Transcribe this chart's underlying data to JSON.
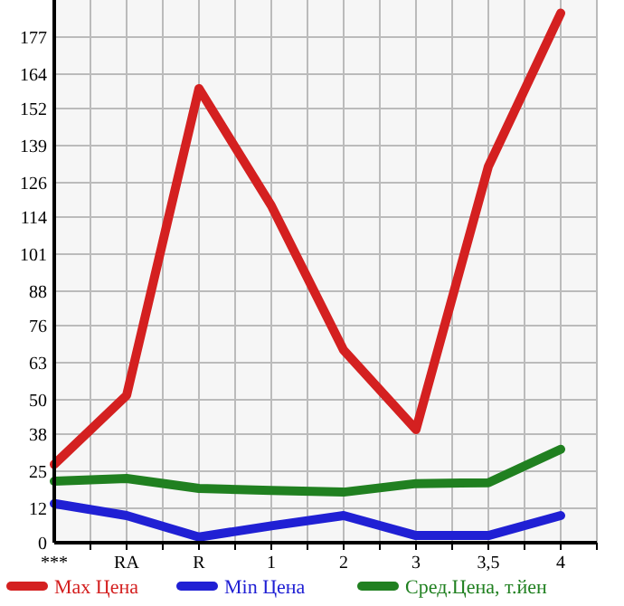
{
  "chart_data": {
    "type": "line",
    "categories": [
      "***",
      "RA",
      "R",
      "1",
      "2",
      "3",
      "3,5",
      "4"
    ],
    "series": [
      {
        "name": "Max Цена",
        "color": "#d42020",
        "values": [
          27.4,
          51.6,
          159,
          118,
          67.4,
          39.6,
          131.7,
          185.4
        ]
      },
      {
        "name": "Min Цена",
        "color": "#2020d4",
        "values": [
          13.7,
          9.5,
          2,
          5.9,
          9.5,
          2.5,
          2.5,
          9.5
        ]
      },
      {
        "name": "Сред.Цена, т.йен",
        "color": "#208020",
        "values": [
          21.5,
          22.5,
          19,
          18.3,
          17.7,
          20.7,
          21,
          32.7
        ]
      }
    ],
    "ylim": [
      0,
      190
    ],
    "yticks": [
      0,
      12,
      25,
      38,
      50,
      63,
      76,
      88,
      101,
      114,
      126,
      139,
      152,
      164,
      177
    ],
    "grid": true,
    "legend": "bottom",
    "marker": "none",
    "line_style": "solid"
  }
}
